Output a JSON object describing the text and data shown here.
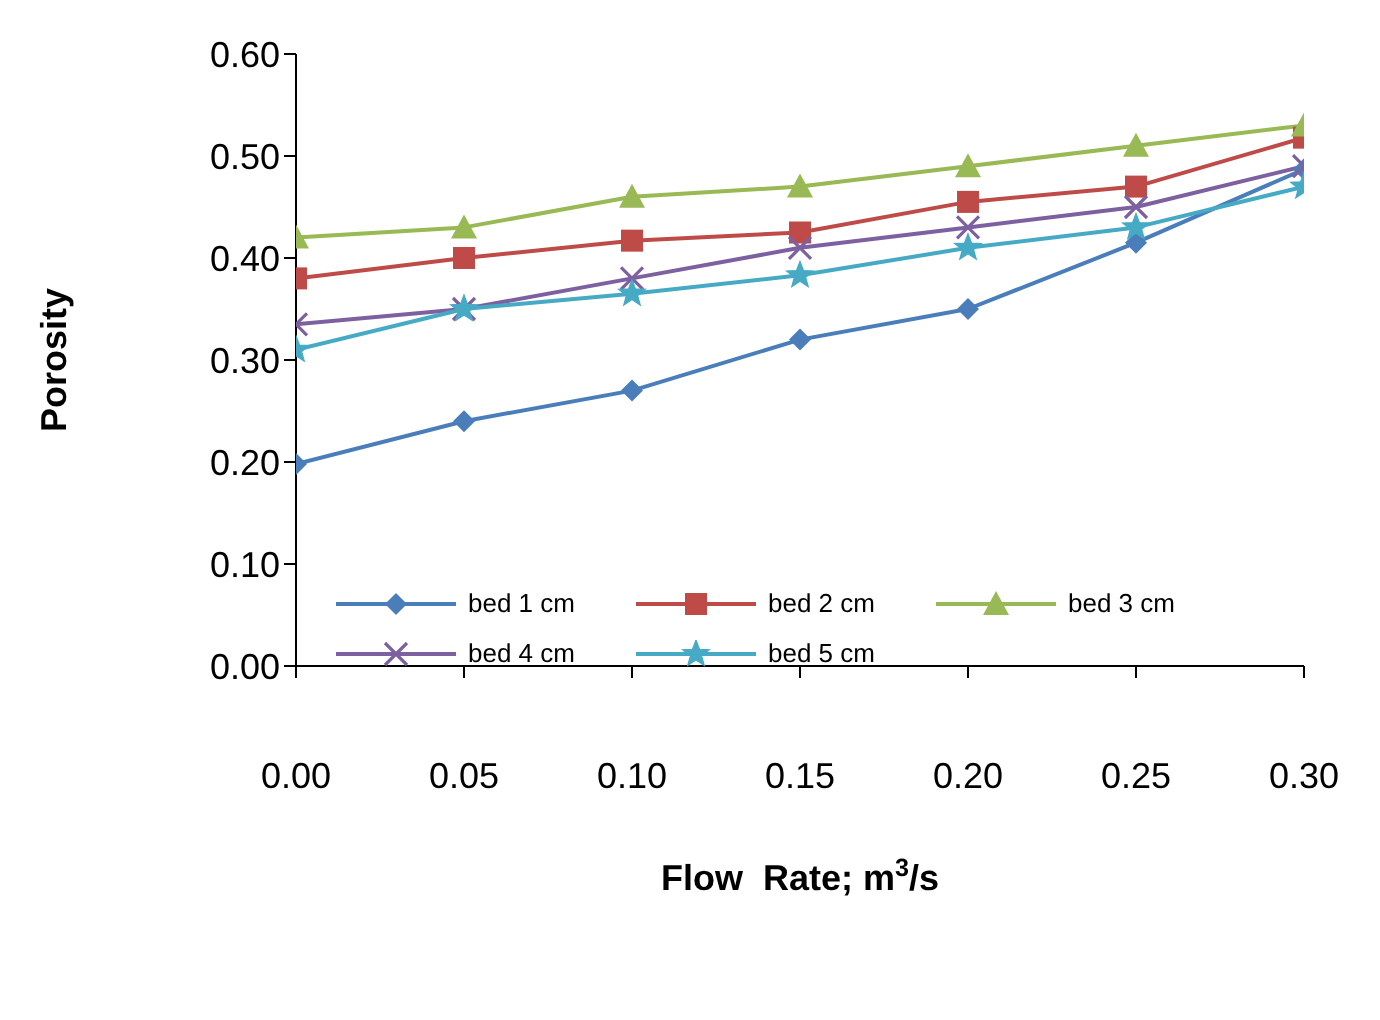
{
  "chart_data": {
    "type": "line",
    "xlabel": "Flow  Rate; m$^{3}$/s",
    "ylabel": "Porosity",
    "x": [
      0,
      0.05,
      0.1,
      0.15,
      0.2,
      0.25,
      0.3
    ],
    "xlim": [
      0,
      0.3
    ],
    "xticks": [
      {
        "value": 0,
        "label": "0.00"
      },
      {
        "value": 0.05,
        "label": "0.05"
      },
      {
        "value": 0.1,
        "label": "0.10"
      },
      {
        "value": 0.15,
        "label": "0.15"
      },
      {
        "value": 0.2,
        "label": "0.20"
      },
      {
        "value": 0.25,
        "label": "0.25"
      },
      {
        "value": 0.3,
        "label": "0.30"
      }
    ],
    "ylim": [
      0,
      0.6
    ],
    "yticks": [
      {
        "value": 0,
        "label": "0.00"
      },
      {
        "value": 0.1,
        "label": "0.10"
      },
      {
        "value": 0.2,
        "label": "0.20"
      },
      {
        "value": 0.3,
        "label": "0.30"
      },
      {
        "value": 0.4,
        "label": "0.40"
      },
      {
        "value": 0.5,
        "label": "0.50"
      },
      {
        "value": 0.6,
        "label": "0.60"
      }
    ],
    "grid": false,
    "legend": "bottom",
    "line_style": "solid",
    "series": [
      {
        "name": "bed 1 cm",
        "color": "#4a7ebb",
        "marker": "diamond",
        "values": [
          0.198,
          0.24,
          0.27,
          0.32,
          0.35,
          0.415,
          0.487
        ]
      },
      {
        "name": "bed 2 cm",
        "color": "#be4b48",
        "marker": "square",
        "values": [
          0.38,
          0.4,
          0.417,
          0.425,
          0.455,
          0.47,
          0.518
        ]
      },
      {
        "name": "bed 3 cm",
        "color": "#98b954",
        "marker": "triangle",
        "values": [
          0.42,
          0.43,
          0.46,
          0.47,
          0.49,
          0.51,
          0.53
        ]
      },
      {
        "name": "bed 4 cm",
        "color": "#7d60a0",
        "marker": "cross",
        "values": [
          0.335,
          0.35,
          0.38,
          0.41,
          0.43,
          0.45,
          0.49
        ]
      },
      {
        "name": "bed 5 cm",
        "color": "#46aac5",
        "marker": "star",
        "values": [
          0.31,
          0.35,
          0.365,
          0.383,
          0.41,
          0.43,
          0.47
        ]
      }
    ]
  }
}
